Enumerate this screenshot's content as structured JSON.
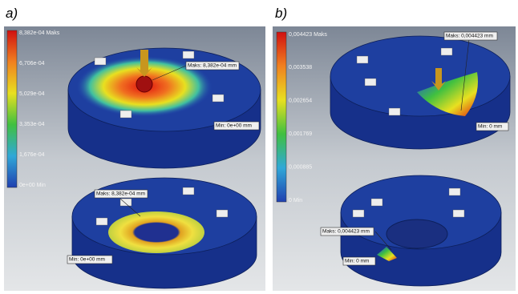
{
  "panels": [
    {
      "label": "a)",
      "legend": [
        "8,382e-04 Maks",
        "6,706e-04",
        "5,029e-04",
        "3,353e-04",
        "1,676e-04",
        "0e+00 Min"
      ],
      "callouts": [
        "Maks: 8,382e-04 mm",
        "Min: 0e+00 mm",
        "Maks: 8,382e-04 mm",
        "Min: 0e+00 mm"
      ]
    },
    {
      "label": "b)",
      "legend": [
        "0,004423 Maks",
        "0,003538",
        "0,002654",
        "0,001769",
        "0,000885",
        "0 Min"
      ],
      "callouts": [
        "Maks: 0,004423 mm",
        "Min: 0 mm",
        "Maks: 0,004423 mm",
        "Min: 0 mm"
      ]
    }
  ]
}
